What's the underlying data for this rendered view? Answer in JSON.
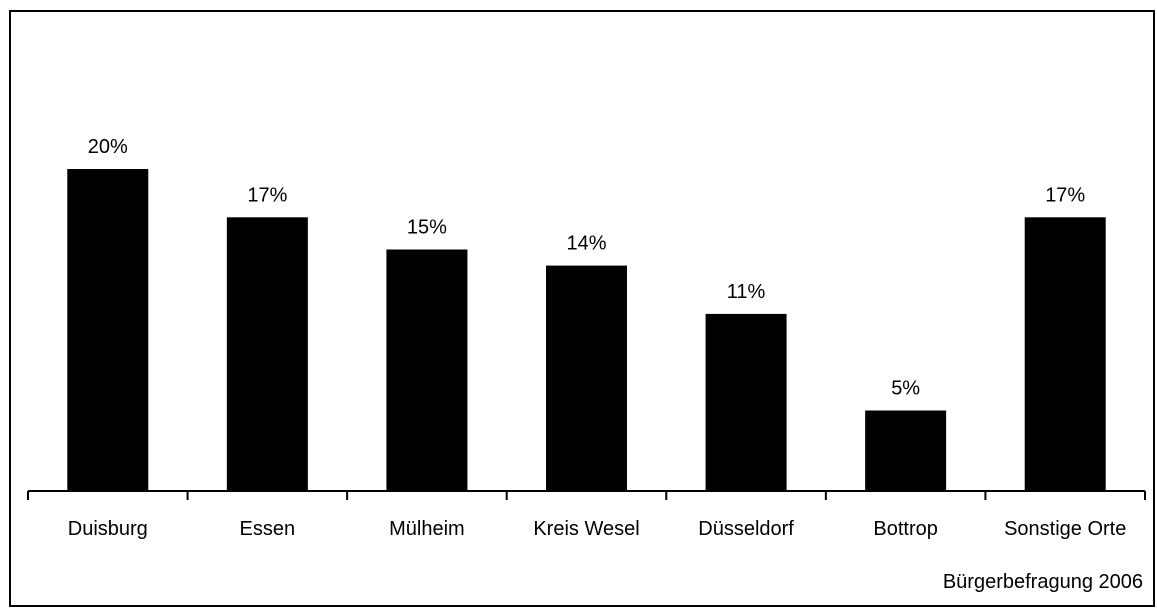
{
  "chart_data": {
    "type": "bar",
    "categories": [
      "Duisburg",
      "Essen",
      "Mülheim",
      "Kreis Wesel",
      "Düsseldorf",
      "Bottrop",
      "Sonstige Orte"
    ],
    "values": [
      20,
      17,
      15,
      14,
      11,
      5,
      17
    ],
    "value_labels": [
      "20%",
      "17%",
      "15%",
      "14%",
      "11%",
      "5%",
      "17%"
    ],
    "unit": "%",
    "title": "",
    "xlabel": "",
    "ylabel": "",
    "ylim": [
      0,
      24
    ],
    "grid": false,
    "legend": "none",
    "bar_color": "#000000",
    "source_note": "Bürgerbefragung 2006"
  }
}
